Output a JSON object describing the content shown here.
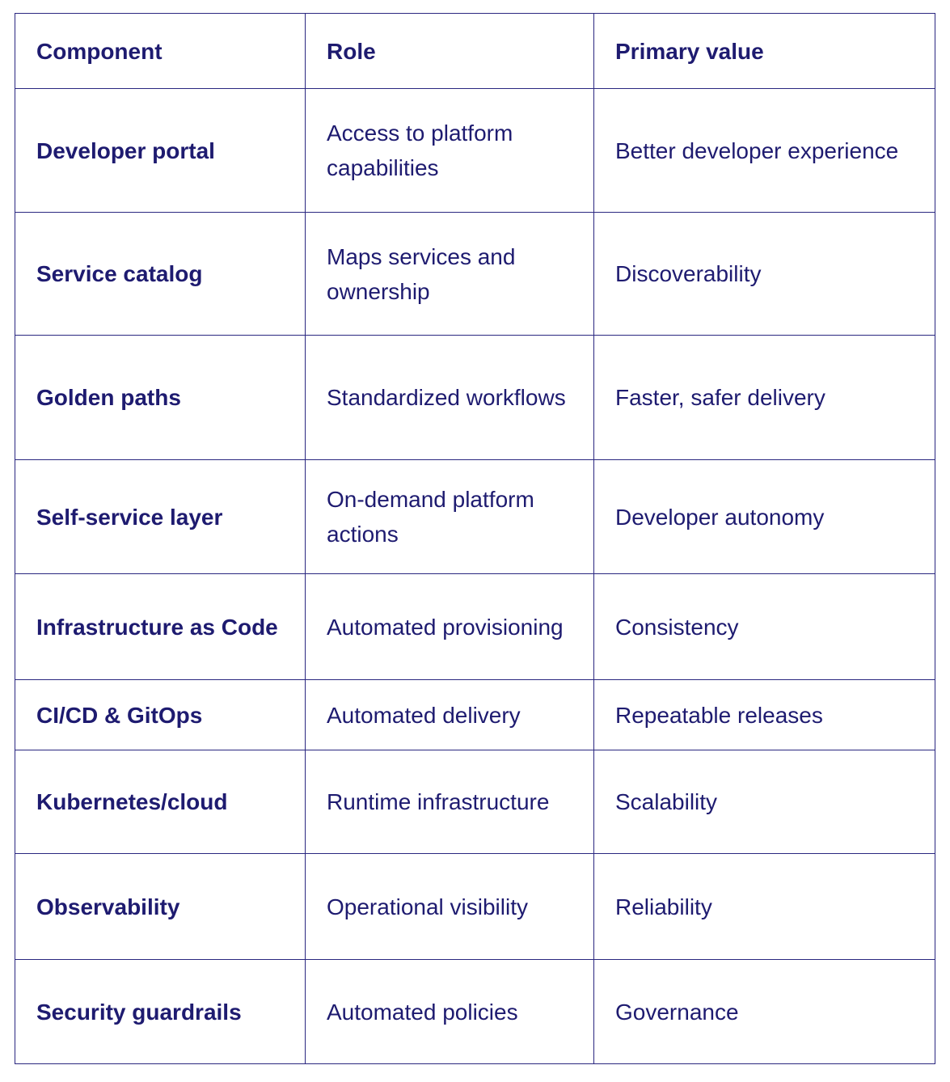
{
  "table": {
    "headers": [
      "Component",
      "Role",
      "Primary value"
    ],
    "rows": [
      {
        "component": "Developer portal",
        "role": "Access to platform capabilities",
        "value": "Better developer experience"
      },
      {
        "component": "Service catalog",
        "role": "Maps services and ownership",
        "value": "Discoverability"
      },
      {
        "component": "Golden paths",
        "role": "Standardized workflows",
        "value": "Faster, safer delivery"
      },
      {
        "component": "Self-service layer",
        "role": "On-demand platform actions",
        "value": "Developer autonomy"
      },
      {
        "component": "Infrastructure as Code",
        "role": "Automated provisioning",
        "value": "Consistency"
      },
      {
        "component": "CI/CD & GitOps",
        "role": "Automated delivery",
        "value": "Repeatable releases"
      },
      {
        "component": "Kubernetes/cloud",
        "role": "Runtime infrastructure",
        "value": "Scalability"
      },
      {
        "component": "Observability",
        "role": "Operational visibility",
        "value": "Reliability"
      },
      {
        "component": "Security guardrails",
        "role": "Automated policies",
        "value": "Governance"
      }
    ]
  },
  "colors": {
    "text": "#1e1b70",
    "border": "#2a2780",
    "background": "#ffffff"
  }
}
